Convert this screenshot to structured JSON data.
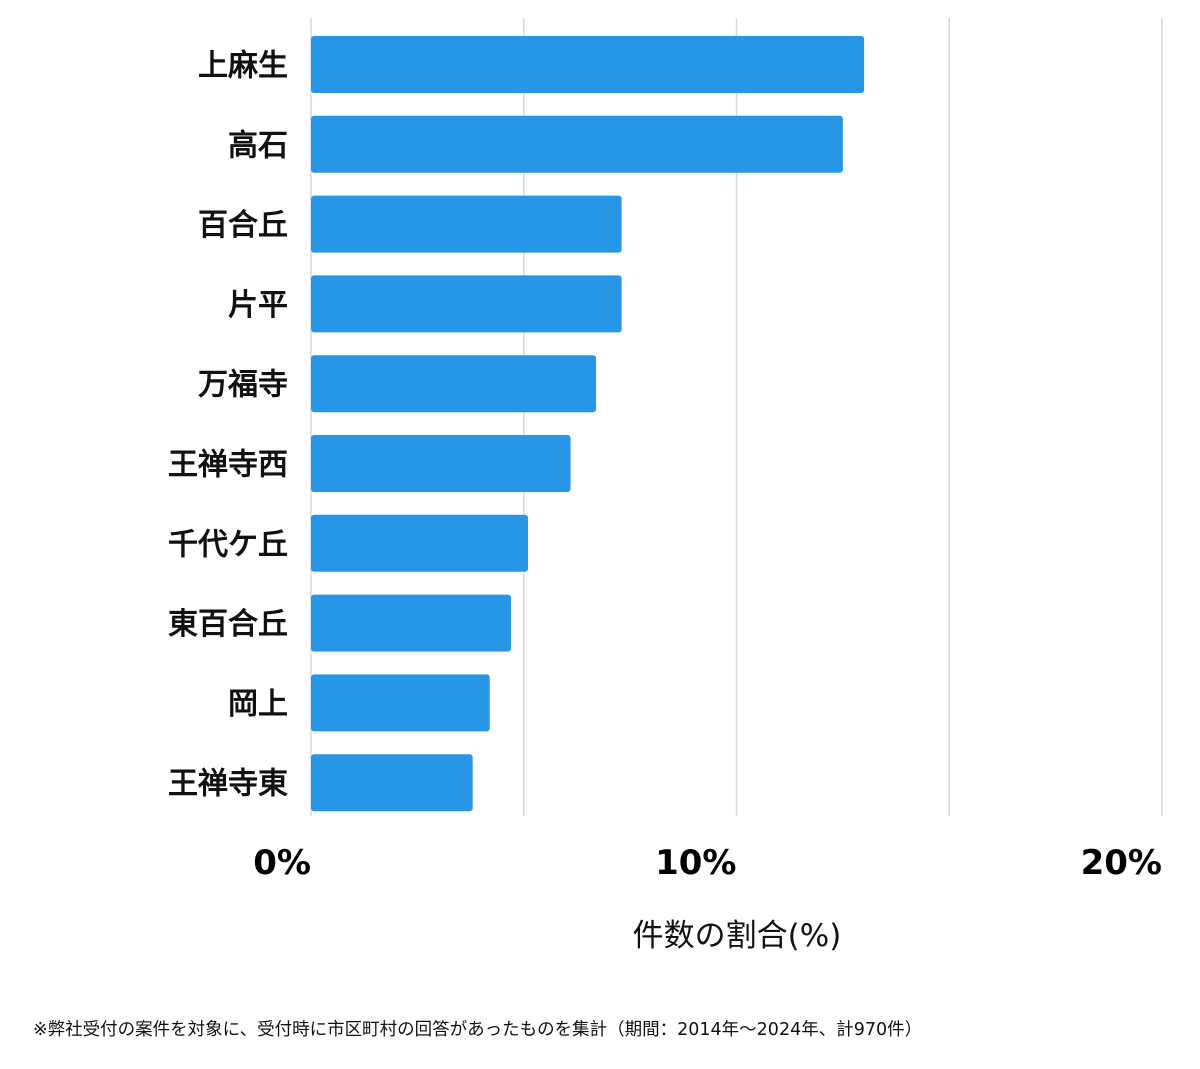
{
  "chart_data": {
    "type": "bar",
    "orientation": "horizontal",
    "categories": [
      "上麻生",
      "高石",
      "百合丘",
      "片平",
      "万福寺",
      "王禅寺西",
      "千代ケ丘",
      "東百合丘",
      "岡上",
      "王禅寺東"
    ],
    "values": [
      13.0,
      12.5,
      7.3,
      7.3,
      6.7,
      6.1,
      5.1,
      4.7,
      4.2,
      3.8
    ],
    "xlim": [
      0,
      20
    ],
    "xticks": [
      "0%",
      "10%",
      "20%"
    ],
    "xlabel": "件数の割合(%)",
    "grid": true,
    "bar_color": "#2896e6",
    "grid_color": "#d9d9d9"
  },
  "footnote": "※弊社受付の案件を対象に、受付時に市区町村の回答があったものを集計（期間：2014年〜2024年、計970件）"
}
